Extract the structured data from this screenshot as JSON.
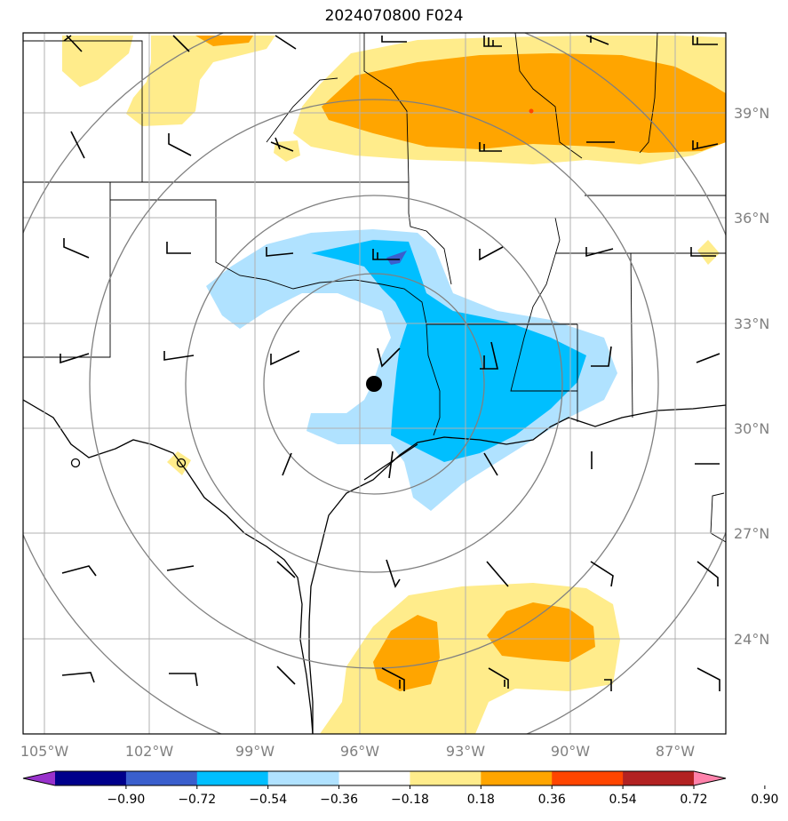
{
  "title": "2024070800 F024",
  "map": {
    "lon_labels": [
      "105°W",
      "102°W",
      "99°W",
      "96°W",
      "93°W",
      "90°W",
      "87°W"
    ],
    "lon_values": [
      -105,
      -102,
      -99,
      -96,
      -93,
      -90,
      -87
    ],
    "lat_labels": [
      "39°N",
      "36°N",
      "33°N",
      "30°N",
      "27°N",
      "24°N"
    ],
    "lat_values": [
      39,
      36,
      33,
      30,
      27,
      24
    ],
    "lon_range": [
      -105.4,
      -85.4
    ],
    "lat_range": [
      21.6,
      41.6
    ],
    "center_marker": {
      "lon": -95.3,
      "lat": 31.2
    },
    "range_rings": "concentric rings around center marker",
    "colors": {
      "grid": "#b0b0b0",
      "ring": "#808080",
      "land_border": "#000000"
    }
  },
  "colorbar": {
    "ticks": [
      "-0.90",
      "-0.72",
      "-0.54",
      "-0.36",
      "-0.18",
      "0.18",
      "0.36",
      "0.54",
      "0.72",
      "0.90"
    ],
    "colors": [
      "#9932cc",
      "#00008b",
      "#3a5fcd",
      "#00bfff",
      "#b0e2ff",
      "#ffffff",
      "#ffec8b",
      "#ffa500",
      "#ff4500",
      "#b22222",
      "#ff82ab"
    ],
    "extend": "both"
  },
  "chart_data": {
    "type": "heatmap",
    "title": "2024070800 F024",
    "xlabel": "",
    "ylabel": "",
    "x_ticks": [
      "105°W",
      "102°W",
      "99°W",
      "96°W",
      "93°W",
      "90°W",
      "87°W"
    ],
    "y_ticks": [
      "39°N",
      "36°N",
      "33°N",
      "30°N",
      "27°N",
      "24°N"
    ],
    "levels": [
      -0.9,
      -0.72,
      -0.54,
      -0.36,
      -0.18,
      0.18,
      0.36,
      0.54,
      0.72,
      0.9
    ],
    "regions": [
      {
        "name": "negative anomaly east Texas / Louisiana",
        "level_range": [
          -0.54,
          -0.36
        ],
        "approx_center_lon": -93.0,
        "approx_center_lat": 31.5
      },
      {
        "name": "positive anomaly Missouri / Illinois",
        "level_range": [
          0.36,
          0.54
        ],
        "approx_center_lon": -92.5,
        "approx_center_lat": 39.5
      },
      {
        "name": "positive anomaly Gulf of Mexico",
        "level_range": [
          0.36,
          0.54
        ],
        "approx_center_lon": -92.0,
        "approx_center_lat": 24.0
      }
    ],
    "grid": true
  }
}
